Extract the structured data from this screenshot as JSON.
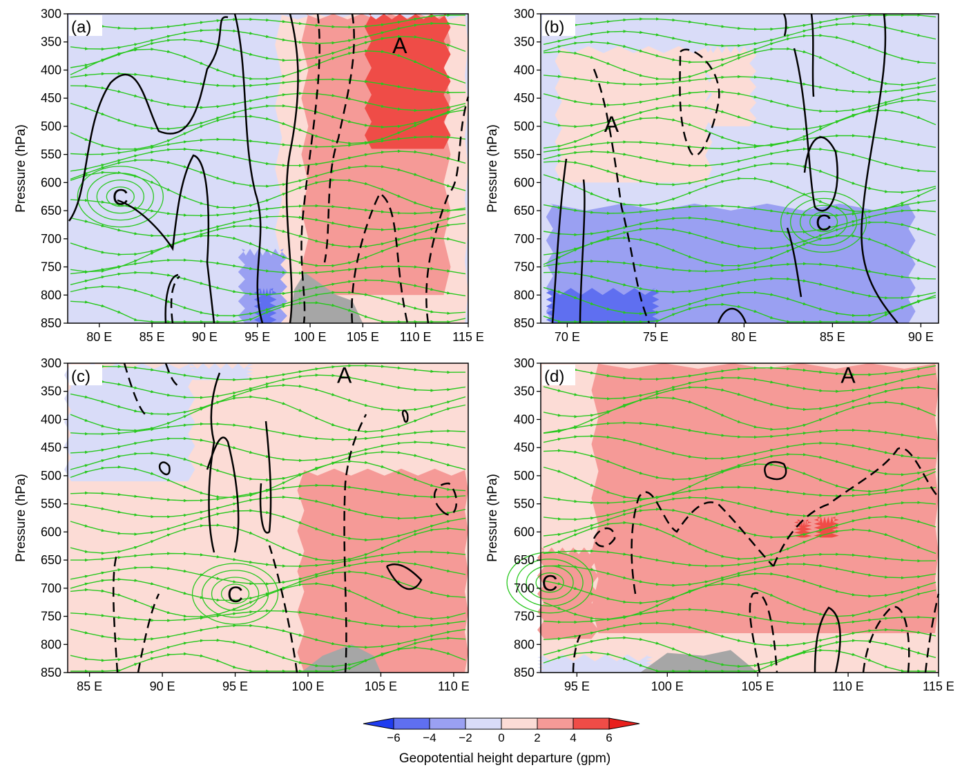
{
  "figure": {
    "colorbar": {
      "label": "Geopotential height departure (gpm)",
      "ticks": [
        "−6",
        "−4",
        "−2",
        "0",
        "2",
        "4",
        "6"
      ],
      "colors": [
        "#1f3cf0",
        "#5f6ff0",
        "#9aa0f2",
        "#d9dcf8",
        "#fcdcd6",
        "#f59a97",
        "#ef4c47",
        "#e8201c"
      ]
    },
    "colors": {
      "neg1": "#d9dcf8",
      "neg2": "#9aa0f2",
      "neg3": "#5f6ff0",
      "neg4": "#1f3cf0",
      "pos1": "#fcdcd6",
      "pos2": "#f59a97",
      "pos3": "#ef4c47",
      "terrain": "#a6a6a6",
      "streamline": "#28c81e",
      "contour": "#000000"
    }
  },
  "chart_data": [
    {
      "id": "a",
      "label": "(a)",
      "type": "streamline-contour-cross-section",
      "ylabel": "Pressure (hPa)",
      "yticks": [
        300,
        350,
        400,
        450,
        500,
        550,
        600,
        650,
        700,
        750,
        800,
        850
      ],
      "ylim": [
        300,
        850
      ],
      "xlim": [
        77,
        115
      ],
      "xticks": [
        80,
        85,
        90,
        95,
        100,
        105,
        110,
        115
      ],
      "xtick_labels": [
        "80 E",
        "85 E",
        "90 E",
        "95 E",
        "100 E",
        "105 E",
        "110 E",
        "115 E"
      ],
      "annotations": [
        {
          "text": "A",
          "lon": 108.5,
          "p": 355
        },
        {
          "text": "C",
          "lon": 82,
          "p": 625
        }
      ],
      "background_level": "neg1",
      "regions": [
        {
          "level": "pos1",
          "lon": [
            97,
            115
          ],
          "p": [
            300,
            850
          ]
        },
        {
          "level": "pos2",
          "lon": [
            99.5,
            113
          ],
          "p": [
            300,
            800
          ]
        },
        {
          "level": "pos3",
          "lon": [
            105.5,
            113
          ],
          "p": [
            300,
            540
          ]
        },
        {
          "level": "neg2",
          "lon": [
            93.5,
            97.5
          ],
          "p": [
            720,
            850
          ]
        },
        {
          "level": "neg3",
          "lon": [
            95,
            96.5
          ],
          "p": [
            790,
            850
          ]
        }
      ],
      "terrain": [
        [
          98,
          850
        ],
        [
          98.5,
          790
        ],
        [
          99.5,
          760
        ],
        [
          101,
          780
        ],
        [
          102.5,
          800
        ],
        [
          104,
          810
        ],
        [
          105,
          850
        ]
      ]
    },
    {
      "id": "b",
      "label": "(b)",
      "type": "streamline-contour-cross-section",
      "ylabel": "Pressure (hPa)",
      "yticks": [
        300,
        350,
        400,
        450,
        500,
        550,
        600,
        650,
        700,
        750,
        800,
        850
      ],
      "ylim": [
        300,
        850
      ],
      "xlim": [
        68.5,
        91
      ],
      "xticks": [
        70,
        75,
        80,
        85,
        90
      ],
      "xtick_labels": [
        "70 E",
        "75 E",
        "80 E",
        "85 E",
        "90 E"
      ],
      "annotations": [
        {
          "text": "A",
          "lon": 72.5,
          "p": 495
        },
        {
          "text": "C",
          "lon": 84.5,
          "p": 670
        }
      ],
      "background_level": "neg1",
      "regions": [
        {
          "level": "pos1",
          "lon": [
            69.5,
            78
          ],
          "p": [
            360,
            600
          ]
        },
        {
          "level": "pos1",
          "lon": [
            78,
            80.5
          ],
          "p": [
            360,
            500
          ]
        },
        {
          "level": "neg2",
          "lon": [
            69,
            89.5
          ],
          "p": [
            640,
            850
          ]
        },
        {
          "level": "neg3",
          "lon": [
            69,
            75
          ],
          "p": [
            790,
            850
          ]
        }
      ],
      "terrain": []
    },
    {
      "id": "c",
      "label": "(c)",
      "type": "streamline-contour-cross-section",
      "ylabel": "Pressure (hPa)",
      "yticks": [
        300,
        350,
        400,
        450,
        500,
        550,
        600,
        650,
        700,
        750,
        800,
        850
      ],
      "ylim": [
        300,
        850
      ],
      "xlim": [
        83.5,
        111
      ],
      "xticks": [
        85,
        90,
        95,
        100,
        105,
        110
      ],
      "xtick_labels": [
        "85 E",
        "90 E",
        "95 E",
        "100 E",
        "105 E",
        "110 E"
      ],
      "annotations": [
        {
          "text": "A",
          "lon": 102.5,
          "p": 320
        },
        {
          "text": "C",
          "lon": 95,
          "p": 710
        }
      ],
      "background_level": "pos1",
      "regions": [
        {
          "level": "neg1",
          "lon": [
            83.5,
            92
          ],
          "p": [
            300,
            510
          ]
        },
        {
          "level": "neg1",
          "lon": [
            92,
            96
          ],
          "p": [
            300,
            330
          ]
        },
        {
          "level": "pos2",
          "lon": [
            99.5,
            111
          ],
          "p": [
            490,
            850
          ]
        }
      ],
      "terrain": [
        [
          99.5,
          850
        ],
        [
          101,
          820
        ],
        [
          103,
          800
        ],
        [
          104.5,
          820
        ],
        [
          105,
          850
        ]
      ]
    },
    {
      "id": "d",
      "label": "(d)",
      "type": "streamline-contour-cross-section",
      "ylabel": "Pressure (hPa)",
      "yticks": [
        300,
        350,
        400,
        450,
        500,
        550,
        600,
        650,
        700,
        750,
        800,
        850
      ],
      "ylim": [
        300,
        850
      ],
      "xlim": [
        93,
        115
      ],
      "xticks": [
        95,
        100,
        105,
        110,
        115
      ],
      "xtick_labels": [
        "95 E",
        "100 E",
        "105 E",
        "110 E",
        "115 E"
      ],
      "annotations": [
        {
          "text": "A",
          "lon": 110,
          "p": 320
        },
        {
          "text": "C",
          "lon": 93.5,
          "p": 690
        }
      ],
      "background_level": "pos1",
      "regions": [
        {
          "level": "pos2",
          "lon": [
            96,
            115
          ],
          "p": [
            300,
            780
          ]
        },
        {
          "level": "pos2",
          "lon": [
            93,
            96
          ],
          "p": [
            630,
            790
          ]
        },
        {
          "level": "pos3",
          "lon": [
            108.3,
            109.3
          ],
          "p": [
            575,
            610
          ]
        },
        {
          "level": "pos3",
          "lon": [
            107.2,
            107.8
          ],
          "p": [
            580,
            610
          ]
        },
        {
          "level": "neg1",
          "lon": [
            93,
            99
          ],
          "p": [
            820,
            850
          ]
        }
      ],
      "terrain": [
        [
          98.5,
          850
        ],
        [
          100,
          815
        ],
        [
          102,
          820
        ],
        [
          103.5,
          810
        ],
        [
          105,
          850
        ]
      ]
    }
  ]
}
